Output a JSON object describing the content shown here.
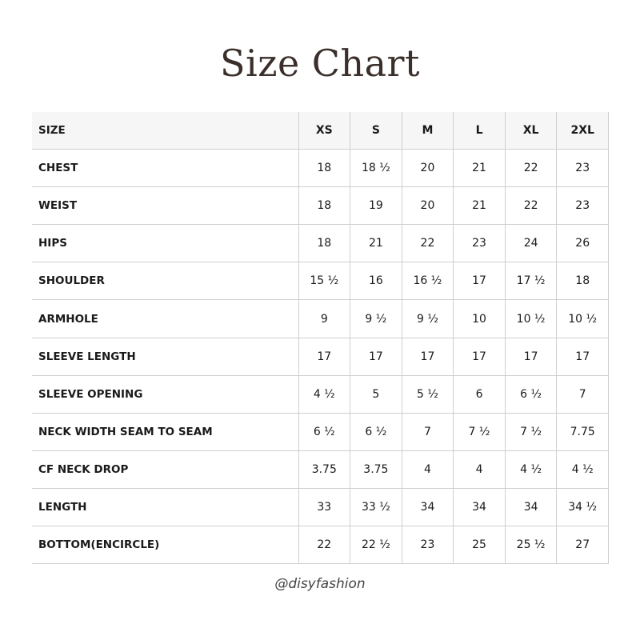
{
  "title": "Size Chart",
  "table": {
    "header": [
      "SIZE",
      "XS",
      "S",
      "M",
      "L",
      "XL",
      "2XL"
    ],
    "rows": [
      [
        "CHEST",
        "18",
        "18 ½",
        "20",
        "21",
        "22",
        "23"
      ],
      [
        "WEIST",
        "18",
        "19",
        "20",
        "21",
        "22",
        "23"
      ],
      [
        "HIPS",
        "18",
        "21",
        "22",
        "23",
        "24",
        "26"
      ],
      [
        "SHOULDER",
        "15 ½",
        "16",
        "16 ½",
        "17",
        "17 ½",
        "18"
      ],
      [
        "ARMHOLE",
        "9",
        "9 ½",
        "9 ½",
        "10",
        "10 ½",
        "10 ½"
      ],
      [
        "SLEEVE LENGTH",
        "17",
        "17",
        "17",
        "17",
        "17",
        "17"
      ],
      [
        "SLEEVE OPENING",
        "4 ½",
        "5",
        "5 ½",
        "6",
        "6 ½",
        "7"
      ],
      [
        "NECK WIDTH SEAM TO SEAM",
        "6 ½",
        "6 ½",
        "7",
        "7 ½",
        "7 ½",
        "7.75"
      ],
      [
        "CF NECK DROP",
        "3.75",
        "3.75",
        "4",
        "4",
        "4 ½",
        "4 ½"
      ],
      [
        "LENGTH",
        "33",
        "33 ½",
        "34",
        "34",
        "34",
        "34 ½"
      ],
      [
        "BOTTOM(ENCIRCLE)",
        "22",
        "22 ½",
        "23",
        "25",
        "25 ½",
        "27"
      ]
    ]
  },
  "footer": "@disyfashion",
  "colors": {
    "title": "#3a2f2a",
    "header_bg": "#f6f6f6",
    "grid": "#cfcfcf"
  }
}
